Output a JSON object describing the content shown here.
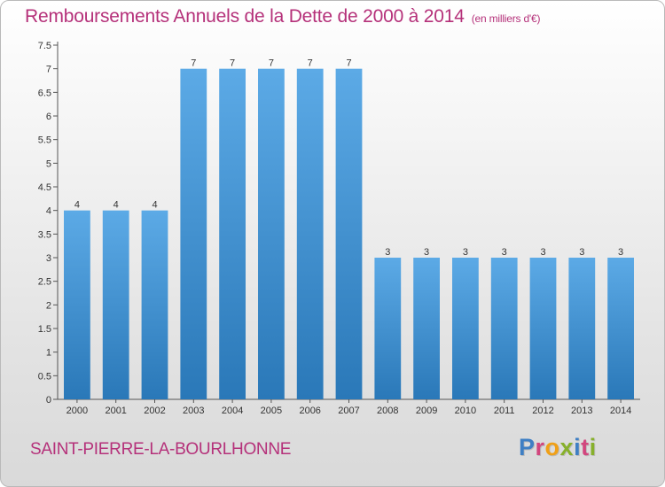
{
  "header": {
    "title": "Remboursements Annuels de la Dette de 2000 à 2014",
    "unit": "(en milliers d'€)"
  },
  "footer": {
    "commune": "SAINT-PIERRE-LA-BOURLHONNE",
    "logo": "Proxiti"
  },
  "colors": {
    "accent": "#b5317a",
    "bar_light": "#5caae6",
    "bar_dark": "#2a78b8",
    "logo_letters": [
      "#3f7fc4",
      "#d2467e",
      "#f0a017",
      "#87b02b",
      "#3f7fc4",
      "#d2467e",
      "#87b02b"
    ]
  },
  "chart_data": {
    "type": "bar",
    "title": "Remboursements Annuels de la Dette de 2000 à 2014",
    "xlabel": "",
    "ylabel": "",
    "categories": [
      "2000",
      "2001",
      "2002",
      "2003",
      "2004",
      "2005",
      "2006",
      "2007",
      "2008",
      "2009",
      "2010",
      "2011",
      "2012",
      "2013",
      "2014"
    ],
    "values": [
      4,
      4,
      4,
      7,
      7,
      7,
      7,
      7,
      3,
      3,
      3,
      3,
      3,
      3,
      3
    ],
    "data_labels": [
      "4",
      "4",
      "4",
      "7",
      "7",
      "7",
      "7",
      "7",
      "3",
      "3",
      "3",
      "3",
      "3",
      "3",
      "3"
    ],
    "yticks": [
      "0",
      "0.5",
      "1",
      "1.5",
      "2",
      "2.5",
      "3",
      "3.5",
      "4",
      "4.5",
      "5",
      "5.5",
      "6",
      "6.5",
      "7",
      "7.5"
    ],
    "ylim": [
      0,
      7.5
    ],
    "grid": false,
    "legend": "none"
  }
}
